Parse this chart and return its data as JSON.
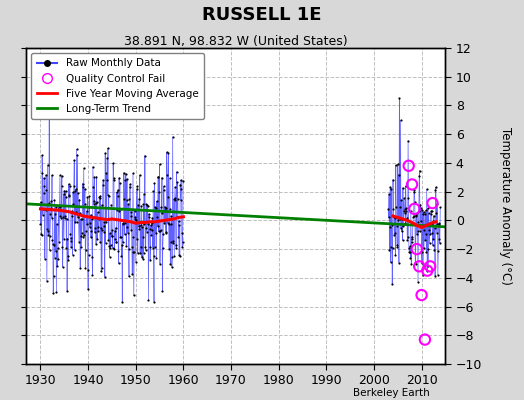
{
  "title": "RUSSELL 1E",
  "subtitle": "38.891 N, 98.832 W (United States)",
  "ylabel": "Temperature Anomaly (°C)",
  "credit": "Berkeley Earth",
  "ylim": [
    -10,
    12
  ],
  "xlim": [
    1927,
    2015
  ],
  "xticks": [
    1930,
    1940,
    1950,
    1960,
    1970,
    1980,
    1990,
    2000,
    2010
  ],
  "yticks": [
    -10,
    -8,
    -6,
    -4,
    -2,
    0,
    2,
    4,
    6,
    8,
    10,
    12
  ],
  "bg_color": "#d8d8d8",
  "plot_bg_color": "#ffffff",
  "grid_color": "#c0c0c0",
  "raw_line_color": "#4444ff",
  "raw_marker_color": "black",
  "ma_color": "red",
  "trend_color": "green",
  "qc_fail_color": "magenta",
  "trend_x": [
    1927,
    2015
  ],
  "trend_y": [
    1.15,
    -0.45
  ],
  "ma1_x": [
    1930,
    1932,
    1934,
    1935,
    1936,
    1937,
    1938,
    1939,
    1940,
    1941,
    1942,
    1943,
    1944,
    1945,
    1946,
    1947,
    1948,
    1949,
    1950,
    1951,
    1952,
    1953,
    1954,
    1955,
    1956,
    1957,
    1958,
    1959,
    1960
  ],
  "ma1_y": [
    0.8,
    0.75,
    0.7,
    0.65,
    0.6,
    0.5,
    0.4,
    0.3,
    0.25,
    0.2,
    0.15,
    0.1,
    0.05,
    0.1,
    0.05,
    0.0,
    -0.05,
    -0.1,
    -0.2,
    -0.15,
    -0.15,
    -0.1,
    -0.1,
    -0.05,
    0.0,
    0.05,
    0.1,
    0.2,
    0.25
  ],
  "ma2_x": [
    2004,
    2005,
    2006,
    2007,
    2008,
    2009,
    2010,
    2011,
    2012,
    2013
  ],
  "ma2_y": [
    0.3,
    0.2,
    0.1,
    0.0,
    -0.15,
    -0.35,
    -0.5,
    -0.35,
    -0.2,
    -0.1
  ],
  "qc_x": [
    2007.3,
    2008.0,
    2008.5,
    2009.0,
    2009.5,
    2010.0,
    2010.7,
    2011.2,
    2011.8,
    2012.3
  ],
  "qc_y": [
    3.8,
    2.5,
    0.8,
    -2.0,
    -3.2,
    -5.2,
    -8.3,
    -3.5,
    -3.2,
    1.2
  ],
  "spike_x": 2005.3,
  "spike_y": 8.5
}
